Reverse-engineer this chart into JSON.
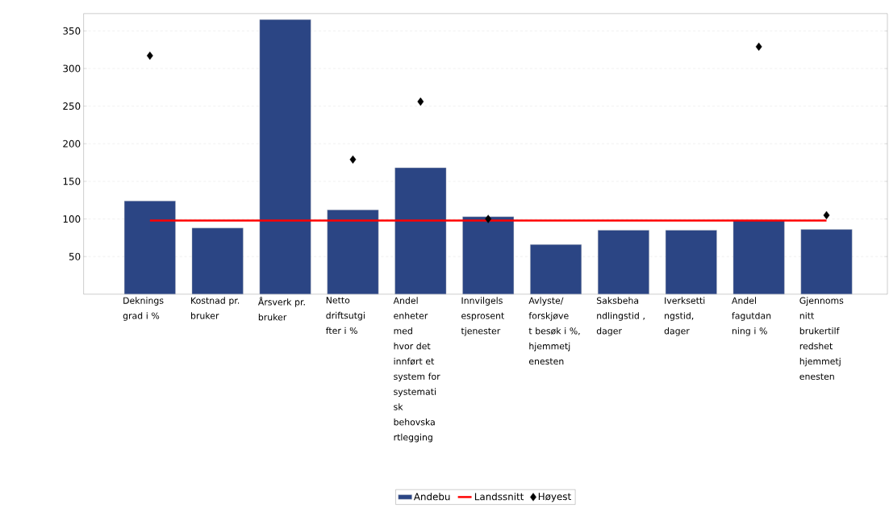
{
  "chart_data": {
    "type": "bar",
    "categories": [
      "Deknings grad i %",
      "Kostnad pr. bruker",
      "Årsverk pr. bruker",
      "Netto driftsutgi fter i %",
      "Andel enheter med hvor det innført et system for systemati sk behovska rtlegging",
      "Innvilgels esprosent tjenester",
      "Avlyste/ forskjøve t besøk i %, hjemmetj enesten",
      "Saksbeha ndlingstid , dager",
      "Iverksetti ngstid, dager",
      "Andel fagutdan ning i %",
      "Gjennoms nitt brukertilf redshet hjemmetj enesten"
    ],
    "series": [
      {
        "name": "Andebu",
        "color": "#2b4584",
        "values": [
          124,
          88,
          365,
          112,
          168,
          103,
          66,
          85,
          85,
          98,
          86
        ]
      },
      {
        "name": "Landssnitt",
        "type": "line",
        "color": "#ff0000",
        "values": [
          98,
          98,
          98,
          98,
          98,
          98,
          98,
          98,
          98,
          98,
          98
        ]
      },
      {
        "name": "Høyest",
        "type": "scatter",
        "color": "#000000",
        "marker": "diamond",
        "values": [
          317,
          null,
          null,
          179,
          256,
          100,
          null,
          null,
          null,
          329,
          105
        ]
      }
    ],
    "ylim": [
      0,
      373
    ],
    "yticks": [
      50,
      100,
      150,
      200,
      250,
      300,
      350
    ],
    "grid": "y",
    "legend": "bottom"
  }
}
